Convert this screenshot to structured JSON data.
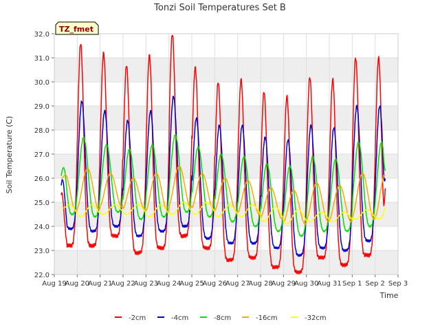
{
  "chart_data": {
    "type": "line",
    "title": "Tonzi Soil Temperatures Set B",
    "xlabel": "Time",
    "ylabel": "Soil Temperature (C)",
    "badge": "TZ_fmet",
    "ylim": [
      22.0,
      32.0
    ],
    "xlim": [
      "Aug 19",
      "Sep 3"
    ],
    "yticks": [
      "22.0",
      "23.0",
      "24.0",
      "25.0",
      "26.0",
      "27.0",
      "28.0",
      "29.0",
      "30.0",
      "31.0",
      "32.0"
    ],
    "xticks": [
      "Aug 19",
      "Aug 20",
      "Aug 21",
      "Aug 22",
      "Aug 23",
      "Aug 24",
      "Aug 25",
      "Aug 26",
      "Aug 27",
      "Aug 28",
      "Aug 29",
      "Aug 30",
      "Aug 31",
      "Sep 1",
      "Sep 2",
      "Sep 3"
    ],
    "grid": true,
    "legend_position": "bottom",
    "colors": {
      "band": "#eeeeee",
      "grid": "#dddddd",
      "badge_bg": "#ffffcc",
      "badge_text": "#8b0000"
    },
    "series": [
      {
        "name": "-2cm",
        "color": "#ff0000",
        "start_offset": 0.3,
        "end_offset": 14.45,
        "peak_phase": 0.65,
        "sharpness": 3,
        "start_value": 25.3,
        "end_value": 25.8,
        "daily_min": [
          23.2,
          23.2,
          23.6,
          22.9,
          23.1,
          23.6,
          23.1,
          22.6,
          22.7,
          22.3,
          22.1,
          22.7,
          22.4,
          22.8
        ],
        "daily_max": [
          31.3,
          31.6,
          31.2,
          30.7,
          31.1,
          32.0,
          30.6,
          30.0,
          30.1,
          29.6,
          29.4,
          30.2,
          30.1,
          31.0
        ]
      },
      {
        "name": "-4cm",
        "color": "#0000cc",
        "start_offset": 0.3,
        "end_offset": 14.45,
        "peak_phase": 0.7,
        "sharpness": 2.2,
        "start_value": 25.7,
        "end_value": 26.1,
        "daily_min": [
          23.9,
          23.8,
          24.0,
          23.6,
          23.8,
          24.0,
          23.5,
          23.3,
          23.3,
          23.1,
          22.8,
          23.1,
          23.0,
          23.4
        ],
        "daily_max": [
          28.9,
          29.2,
          28.8,
          28.4,
          28.8,
          29.4,
          28.5,
          28.2,
          28.2,
          27.7,
          27.6,
          28.2,
          28.1,
          29.0
        ]
      },
      {
        "name": "-8cm",
        "color": "#00dd00",
        "start_offset": 0.3,
        "end_offset": 14.45,
        "peak_phase": 0.78,
        "sharpness": 1.4,
        "start_value": 26.1,
        "end_value": 26.3,
        "daily_min": [
          24.5,
          24.4,
          24.6,
          24.3,
          24.4,
          24.6,
          24.4,
          24.2,
          24.0,
          23.8,
          23.6,
          23.8,
          23.8,
          24.0
        ],
        "daily_max": [
          27.5,
          27.7,
          27.4,
          27.2,
          27.4,
          27.8,
          27.3,
          27.0,
          26.9,
          26.6,
          26.5,
          26.9,
          26.8,
          27.5
        ]
      },
      {
        "name": "-16cm",
        "color": "#ffa500",
        "start_offset": 0.3,
        "end_offset": 14.45,
        "peak_phase": 0.95,
        "sharpness": 1,
        "start_value": 26.0,
        "end_value": 26.1,
        "daily_min": [
          24.6,
          24.7,
          24.8,
          24.7,
          24.6,
          24.8,
          24.7,
          24.6,
          24.5,
          24.3,
          24.1,
          24.2,
          24.2,
          24.3
        ],
        "daily_max": [
          26.2,
          26.4,
          26.2,
          26.0,
          26.2,
          26.5,
          26.2,
          26.0,
          25.9,
          25.6,
          25.5,
          25.8,
          25.7,
          26.2
        ]
      },
      {
        "name": "-32cm",
        "color": "#ffff00",
        "start_offset": 0.3,
        "end_offset": 14.45,
        "peak_phase": 0.15,
        "sharpness": 1,
        "start_value": 24.8,
        "end_value": 24.8,
        "daily_min": [
          24.5,
          24.4,
          24.5,
          24.5,
          24.4,
          24.5,
          24.5,
          24.4,
          24.4,
          24.2,
          24.1,
          24.2,
          24.2,
          24.3
        ],
        "daily_max": [
          24.9,
          24.9,
          24.9,
          24.9,
          24.9,
          25.0,
          25.0,
          24.9,
          24.9,
          24.8,
          24.7,
          24.6,
          24.6,
          24.7
        ]
      }
    ]
  }
}
